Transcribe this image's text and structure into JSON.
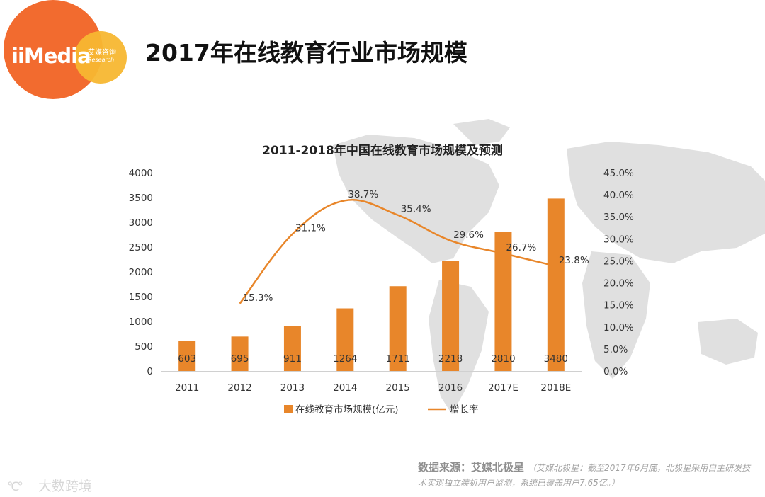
{
  "header": {
    "page_title": "2017年在线教育行业市场规模",
    "logo_main": "iiMedia",
    "logo_cn": "艾媒咨询",
    "logo_en": "Research"
  },
  "chart_data": {
    "type": "bar",
    "title": "2011-2018年中国在线教育市场规模及预测",
    "categories": [
      "2011",
      "2012",
      "2013",
      "2014",
      "2015",
      "2016",
      "2017E",
      "2018E"
    ],
    "series": [
      {
        "name": "在线教育市场规模(亿元)",
        "type": "bar",
        "axis": "left",
        "values": [
          603,
          695,
          911,
          1264,
          1711,
          2218,
          2810,
          3480
        ],
        "labels": [
          "603",
          "695",
          "911",
          "1264",
          "1711",
          "2218",
          "2810",
          "3480"
        ]
      },
      {
        "name": "增长率",
        "type": "line",
        "axis": "right",
        "values": [
          null,
          15.3,
          31.1,
          38.7,
          35.4,
          29.6,
          26.7,
          23.8
        ],
        "labels": [
          "",
          "15.3%",
          "31.1%",
          "38.7%",
          "35.4%",
          "29.6%",
          "26.7%",
          "23.8%"
        ]
      }
    ],
    "y_left": {
      "ylim": [
        0,
        4000
      ],
      "ticks": [
        0,
        500,
        1000,
        1500,
        2000,
        2500,
        3000,
        3500,
        4000
      ],
      "tick_labels": [
        "0",
        "500",
        "1000",
        "1500",
        "2000",
        "2500",
        "3000",
        "3500",
        "4000"
      ]
    },
    "y_right": {
      "ylim": [
        0,
        45
      ],
      "ticks": [
        0,
        5,
        10,
        15,
        20,
        25,
        30,
        35,
        40,
        45
      ],
      "tick_labels": [
        "0.0%",
        "5.0%",
        "10.0%",
        "15.0%",
        "20.0%",
        "25.0%",
        "30.0%",
        "35.0%",
        "40.0%",
        "45.0%"
      ]
    },
    "legend": [
      "在线教育市场规模(亿元)",
      "增长率"
    ],
    "legend_position": "bottom-center",
    "grid": false
  },
  "source": {
    "label": "数据来源：艾媒北极星",
    "note": "（艾媒北极星：截至2017年6月底，北极星采用自主研发技术实现独立装机用户监测，系统已覆盖用户7.65亿。）"
  },
  "watermark": {
    "icon": "°C°",
    "text": "大数跨境"
  },
  "colors": {
    "bar": "#e8862a",
    "line": "#e8862a",
    "logo_orange": "#f26b2f",
    "logo_yellow": "#f7b731",
    "map_gray": "#dedede"
  }
}
